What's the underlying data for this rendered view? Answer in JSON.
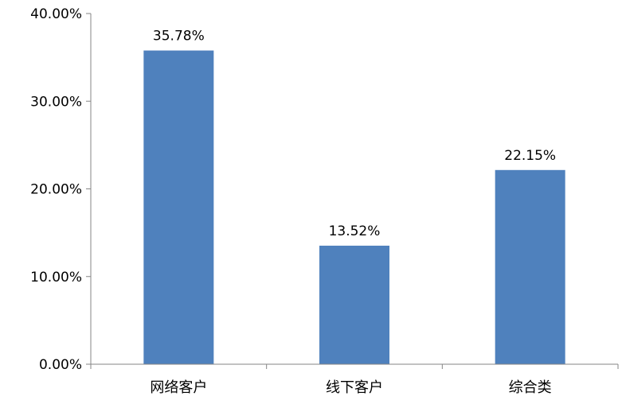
{
  "chart_data": {
    "type": "bar",
    "categories": [
      "网络客户",
      "线下客户",
      "综合类"
    ],
    "values": [
      35.78,
      13.52,
      22.15
    ],
    "data_labels": [
      "35.78%",
      "13.52%",
      "22.15%"
    ],
    "ylim": [
      0,
      40
    ],
    "yticks": [
      "0.00%",
      "10.00%",
      "20.00%",
      "30.00%",
      "40.00%"
    ],
    "ytick_values": [
      0,
      10,
      20,
      30,
      40
    ],
    "bar_color": "#4F81BD",
    "axis_color": "#868686",
    "grid": false,
    "legend": "none"
  }
}
